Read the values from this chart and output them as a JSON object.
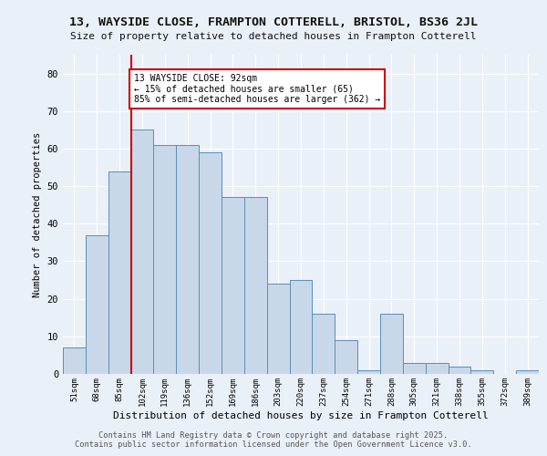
{
  "title1": "13, WAYSIDE CLOSE, FRAMPTON COTTERELL, BRISTOL, BS36 2JL",
  "title2": "Size of property relative to detached houses in Frampton Cotterell",
  "xlabel": "Distribution of detached houses by size in Frampton Cotterell",
  "ylabel": "Number of detached properties",
  "categories": [
    "51sqm",
    "68sqm",
    "85sqm",
    "102sqm",
    "119sqm",
    "136sqm",
    "152sqm",
    "169sqm",
    "186sqm",
    "203sqm",
    "220sqm",
    "237sqm",
    "254sqm",
    "271sqm",
    "288sqm",
    "305sqm",
    "321sqm",
    "338sqm",
    "355sqm",
    "372sqm",
    "389sqm"
  ],
  "values": [
    7,
    37,
    54,
    65,
    61,
    61,
    59,
    47,
    47,
    24,
    25,
    16,
    9,
    1,
    16,
    3,
    3,
    2,
    1,
    0,
    1
  ],
  "bar_color": "#c8d8e8",
  "bar_edge_color": "#5b8db8",
  "red_line_x": 2.5,
  "annotation_text": "13 WAYSIDE CLOSE: 92sqm\n← 15% of detached houses are smaller (65)\n85% of semi-detached houses are larger (362) →",
  "annotation_box_color": "#ffffff",
  "annotation_box_edge": "#cc0000",
  "ylim": [
    0,
    85
  ],
  "yticks": [
    0,
    10,
    20,
    30,
    40,
    50,
    60,
    70,
    80
  ],
  "background_color": "#eaf0f8",
  "grid_color": "#ffffff",
  "footer1": "Contains HM Land Registry data © Crown copyright and database right 2025.",
  "footer2": "Contains public sector information licensed under the Open Government Licence v3.0."
}
